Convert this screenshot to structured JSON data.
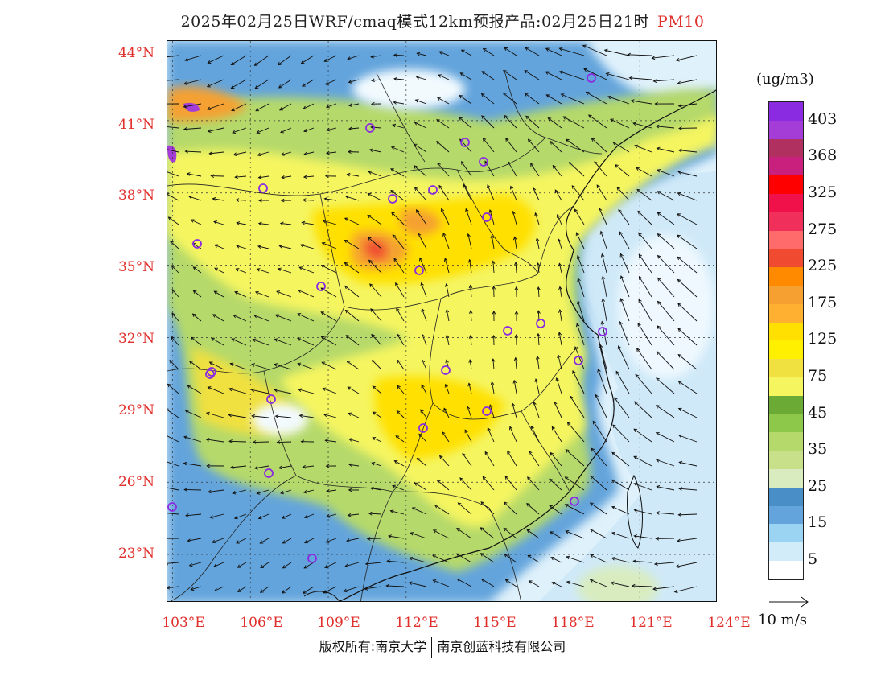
{
  "title": {
    "main": "2025年02月25日WRF/cmaq模式12km预报产品:02月25日21时",
    "variable": "PM10"
  },
  "axes": {
    "latitude_labels": [
      "44°N",
      "41°N",
      "38°N",
      "35°N",
      "32°N",
      "29°N",
      "26°N",
      "23°N"
    ],
    "longitude_labels": [
      "103°E",
      "106°E",
      "109°E",
      "112°E",
      "115°E",
      "118°E",
      "121°E",
      "124°E"
    ],
    "lat_range": [
      21,
      44.3
    ],
    "lon_range": [
      102.8,
      124
    ]
  },
  "legend": {
    "units": "(ug/m3)",
    "colors": [
      "#8a2be2",
      "#a43cd8",
      "#b03060",
      "#c8207c",
      "#ff0000",
      "#f0104a",
      "#f0305a",
      "#ff6a6a",
      "#f04a30",
      "#ff8a00",
      "#f5a030",
      "#ffb030",
      "#ffe000",
      "#fff000",
      "#f0e040",
      "#f5f560",
      "#6aaa35",
      "#8ec84a",
      "#b5d96a",
      "#c8e08a",
      "#d8ecc0",
      "#4a8ec8",
      "#64a4dc",
      "#9ad4f2",
      "#d2ecfa",
      "#ffffff"
    ],
    "labels": [
      "403",
      "368",
      "325",
      "275",
      "225",
      "175",
      "125",
      "75",
      "45",
      "35",
      "25",
      "15",
      "5"
    ]
  },
  "wind_reference": {
    "label": "10 m/s"
  },
  "copyright": {
    "left": "版权所有:南京大学",
    "right": "南京创蓝科技有限公司"
  }
}
